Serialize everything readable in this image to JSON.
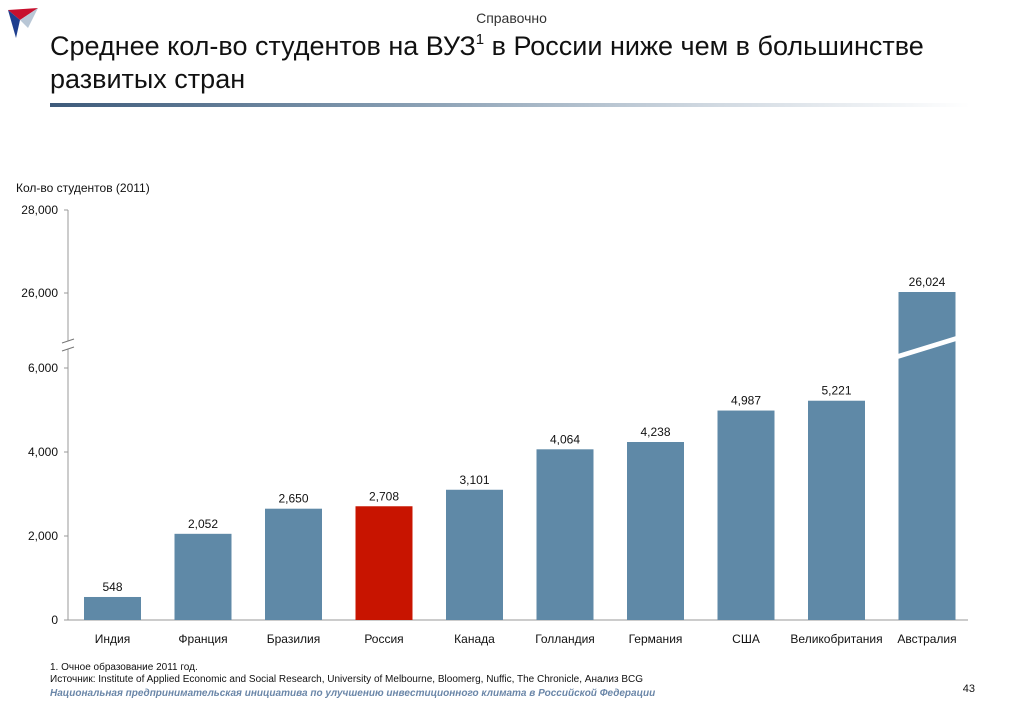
{
  "header": {
    "tag": "Справочно",
    "title_part1": "Среднее кол-во студентов на ВУЗ",
    "title_sup": "1",
    "title_part2": " в России ниже чем в большинстве развитых стран",
    "logo_icon": "arrow-logo-icon"
  },
  "chart_data": {
    "type": "bar",
    "ylabel": "Кол-во студентов (2011)",
    "categories": [
      "Индия",
      "Франция",
      "Бразилия",
      "Россия",
      "Канада",
      "Голландия",
      "Германия",
      "США",
      "Великобритания",
      "Австралия"
    ],
    "values": [
      548,
      2052,
      2650,
      2708,
      3101,
      4064,
      4238,
      4987,
      5221,
      26024
    ],
    "value_labels": [
      "548",
      "2,052",
      "2,650",
      "2,708",
      "3,101",
      "4,064",
      "4,238",
      "4,987",
      "5,221",
      "26,024"
    ],
    "ylim": [
      0,
      28000
    ],
    "axis_break": [
      6000,
      26000
    ],
    "yticks": [
      {
        "value": 0,
        "label": "0"
      },
      {
        "value": 2000,
        "label": "2,000"
      },
      {
        "value": 4000,
        "label": "4,000"
      },
      {
        "value": 6000,
        "label": "6,000"
      },
      {
        "value": 26000,
        "label": "26,000"
      },
      {
        "value": 28000,
        "label": "28,000"
      }
    ],
    "highlight_category": "Россия",
    "colors": {
      "bar": "#5f89a7",
      "highlight": "#c81400",
      "axis": "#999999"
    },
    "grid": false,
    "legend": "none"
  },
  "footer": {
    "footnote": "1. Очное образование 2011 год.",
    "source": "Источник: Institute of Applied Economic and Social Research, University of Melbourne, Bloomerg, Nuffic, The Chronicle, Анализ BCG",
    "page": "43",
    "bottom": "Национальная предпринимательская инициатива по улучшению инвестиционного климата в Российской Федерации"
  }
}
